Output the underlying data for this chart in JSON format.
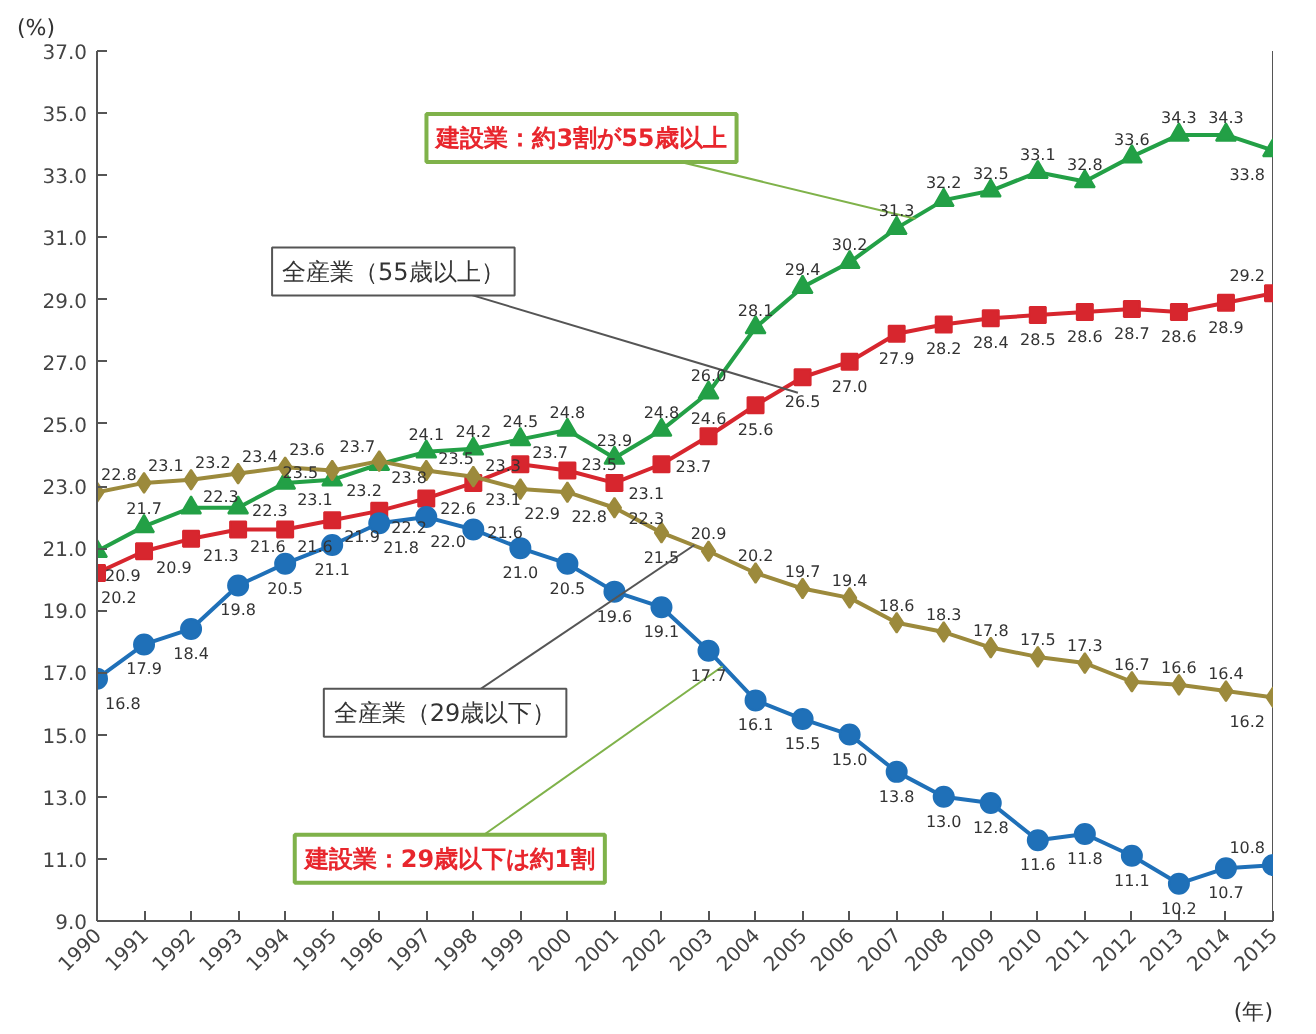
{
  "chart_data": {
    "type": "line",
    "ylabel": "(%)",
    "xlabel": "(年)",
    "x": [
      1990,
      1991,
      1992,
      1993,
      1994,
      1995,
      1996,
      1997,
      1998,
      1999,
      2000,
      2001,
      2002,
      2003,
      2004,
      2005,
      2006,
      2007,
      2008,
      2009,
      2010,
      2011,
      2012,
      2013,
      2014,
      2015
    ],
    "xlim": [
      1990,
      2015
    ],
    "xticks": [
      1990,
      1991,
      1992,
      1993,
      1994,
      1995,
      1996,
      1997,
      1998,
      1999,
      2000,
      2001,
      2002,
      2003,
      2004,
      2005,
      2006,
      2007,
      2008,
      2009,
      2010,
      2011,
      2012,
      2013,
      2014,
      2015
    ],
    "ylim": [
      9,
      37
    ],
    "yticks": [
      {
        "value": 9,
        "label": "9.0"
      },
      {
        "value": 11,
        "label": "11.0"
      },
      {
        "value": 13,
        "label": "13.0"
      },
      {
        "value": 15,
        "label": "15.0"
      },
      {
        "value": 17,
        "label": "17.0"
      },
      {
        "value": 19,
        "label": "19.0"
      },
      {
        "value": 21,
        "label": "21.0"
      },
      {
        "value": 23,
        "label": "23.0"
      },
      {
        "value": 25,
        "label": "25.0"
      },
      {
        "value": 27,
        "label": "27.0"
      },
      {
        "value": 29,
        "label": "29.0"
      },
      {
        "value": 31,
        "label": "31.0"
      },
      {
        "value": 33,
        "label": "33.0"
      },
      {
        "value": 35,
        "label": "35.0"
      },
      {
        "value": 37,
        "label": "37.0"
      }
    ],
    "series": [
      {
        "color": "#23a046",
        "marker": "triangle",
        "values": [
          20.9,
          21.7,
          22.3,
          22.3,
          23.1,
          23.2,
          23.7,
          24.1,
          24.2,
          24.5,
          24.8,
          23.9,
          24.8,
          26.0,
          28.1,
          29.4,
          30.2,
          31.3,
          32.2,
          32.5,
          33.1,
          32.8,
          33.6,
          34.3,
          34.3,
          33.8
        ],
        "value_labels": [
          "20.9",
          "21.7",
          "22.3",
          "22.3",
          "23.1",
          "23.2",
          "23.7",
          "24.1",
          "24.2",
          "24.5",
          "24.8",
          "23.9",
          "24.8",
          "26.0",
          "28.1",
          "29.4",
          "30.2",
          "31.3",
          "32.2",
          "32.5",
          "33.1",
          "32.8",
          "33.6",
          "34.3",
          "34.3",
          "33.8"
        ]
      },
      {
        "color": "#d7262e",
        "marker": "square",
        "values": [
          20.2,
          20.9,
          21.3,
          21.6,
          21.6,
          21.9,
          22.2,
          22.6,
          23.1,
          23.7,
          23.5,
          23.1,
          23.7,
          24.6,
          25.6,
          26.5,
          27.0,
          27.9,
          28.2,
          28.4,
          28.5,
          28.6,
          28.7,
          28.6,
          28.9,
          29.2
        ],
        "value_labels": [
          "20.2",
          "20.9",
          "21.3",
          "21.6",
          "21.6",
          "21.9",
          "22.2",
          "22.6",
          "23.1",
          "23.7",
          "23.5",
          "23.1",
          "23.7",
          "24.6",
          "25.6",
          "26.5",
          "27.0",
          "27.9",
          "28.2",
          "28.4",
          "28.5",
          "28.6",
          "28.7",
          "28.6",
          "28.9",
          "29.2"
        ]
      },
      {
        "color": "#9c8a3c",
        "marker": "diamond",
        "values": [
          22.8,
          23.1,
          23.2,
          23.4,
          23.6,
          23.5,
          23.8,
          23.5,
          23.3,
          22.9,
          22.8,
          22.3,
          21.5,
          20.9,
          20.2,
          19.7,
          19.4,
          18.6,
          18.3,
          17.8,
          17.5,
          17.3,
          16.7,
          16.6,
          16.4,
          16.2
        ],
        "value_labels": [
          "22.8",
          "23.1",
          "23.2",
          "23.4",
          "23.6",
          "23.5",
          "23.8",
          "23.5",
          "23.3",
          "22.9",
          "22.8",
          "22.3",
          "21.5",
          "20.9",
          "20.2",
          "19.7",
          "19.4",
          "18.6",
          "18.3",
          "17.8",
          "17.5",
          "17.3",
          "16.7",
          "16.6",
          "16.4",
          "16.2"
        ]
      },
      {
        "color": "#1f70b8",
        "marker": "circle",
        "values": [
          16.8,
          17.9,
          18.4,
          19.8,
          20.5,
          21.1,
          21.8,
          22.0,
          21.6,
          21.0,
          20.5,
          19.6,
          19.1,
          17.7,
          16.1,
          15.5,
          15.0,
          13.8,
          13.0,
          12.8,
          11.6,
          11.8,
          11.1,
          10.2,
          10.7,
          10.8
        ],
        "value_labels": [
          "16.8",
          "17.9",
          "18.4",
          "19.8",
          "20.5",
          "21.1",
          "21.8",
          "22.0",
          "21.6",
          "21.0",
          "20.5",
          "19.6",
          "19.1",
          "17.7",
          "16.1",
          "15.5",
          "15.0",
          "13.8",
          "13.0",
          "12.8",
          "11.6",
          "11.8",
          "11.1",
          "10.2",
          "10.7",
          "10.8"
        ]
      }
    ],
    "grid": false,
    "line_style": "solid",
    "annotations": [
      {
        "text": "建設業：約3割が55歳以上",
        "x": 2007.4,
        "y": 31.6
      },
      {
        "text": "全産業（55歳以上）",
        "x": 2004.9,
        "y": 26.0
      },
      {
        "text": "全産業（29歳以下）",
        "x": 2002.7,
        "y": 21.1
      },
      {
        "text": "建設業：29歳以下は約1割",
        "x": 2003.3,
        "y": 17.2
      }
    ]
  }
}
